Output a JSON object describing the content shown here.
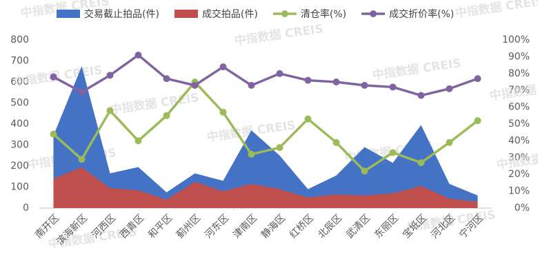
{
  "chart_data": {
    "type": "area-line",
    "watermark": "中指数据 CREIS",
    "categories": [
      "南开区",
      "滨海新区",
      "河西区",
      "西青区",
      "和平区",
      "蓟州区",
      "河东区",
      "津南区",
      "静海区",
      "红桥区",
      "北辰区",
      "武清区",
      "东丽区",
      "宝坻区",
      "河北区",
      "宁河区"
    ],
    "series": [
      {
        "name": "交易截止拍品(件)",
        "color": "#4472c4",
        "kind": "area",
        "values": [
          345,
          675,
          165,
          195,
          75,
          165,
          130,
          370,
          250,
          90,
          155,
          290,
          215,
          395,
          115,
          60
        ]
      },
      {
        "name": "成交拍品(件)",
        "color": "#c0504d",
        "kind": "area",
        "values": [
          140,
          195,
          95,
          85,
          40,
          125,
          80,
          115,
          90,
          50,
          65,
          60,
          70,
          105,
          45,
          30
        ]
      },
      {
        "name": "清仓率(%)",
        "color": "#9bbb59",
        "kind": "line",
        "axis": "y2",
        "values": [
          44,
          29,
          58,
          40,
          55,
          75,
          57,
          32,
          36,
          53,
          39,
          22,
          33,
          27,
          39,
          52
        ]
      },
      {
        "name": "成交折价率(%)",
        "color": "#8064a2",
        "kind": "line",
        "axis": "y2",
        "values": [
          78,
          69,
          79,
          91,
          77,
          73,
          84,
          73,
          80,
          76,
          75,
          73,
          72,
          67,
          71,
          77
        ]
      }
    ],
    "ylim": [
      0,
      800
    ],
    "yticks": [
      0,
      100,
      200,
      300,
      400,
      500,
      600,
      700,
      800
    ],
    "y2lim": [
      0,
      100
    ],
    "y2ticks": [
      {
        "value": 0,
        "label": "0%"
      },
      {
        "value": 10,
        "label": "10%"
      },
      {
        "value": 20,
        "label": "20%"
      },
      {
        "value": 30,
        "label": "30%"
      },
      {
        "value": 40,
        "label": "40%"
      },
      {
        "value": 50,
        "label": "50%"
      },
      {
        "value": 60,
        "label": "60%"
      },
      {
        "value": 70,
        "label": "70%"
      },
      {
        "value": 80,
        "label": "80%"
      },
      {
        "value": 90,
        "label": "90%"
      },
      {
        "value": 100,
        "label": "100%"
      }
    ],
    "legend": "top"
  }
}
